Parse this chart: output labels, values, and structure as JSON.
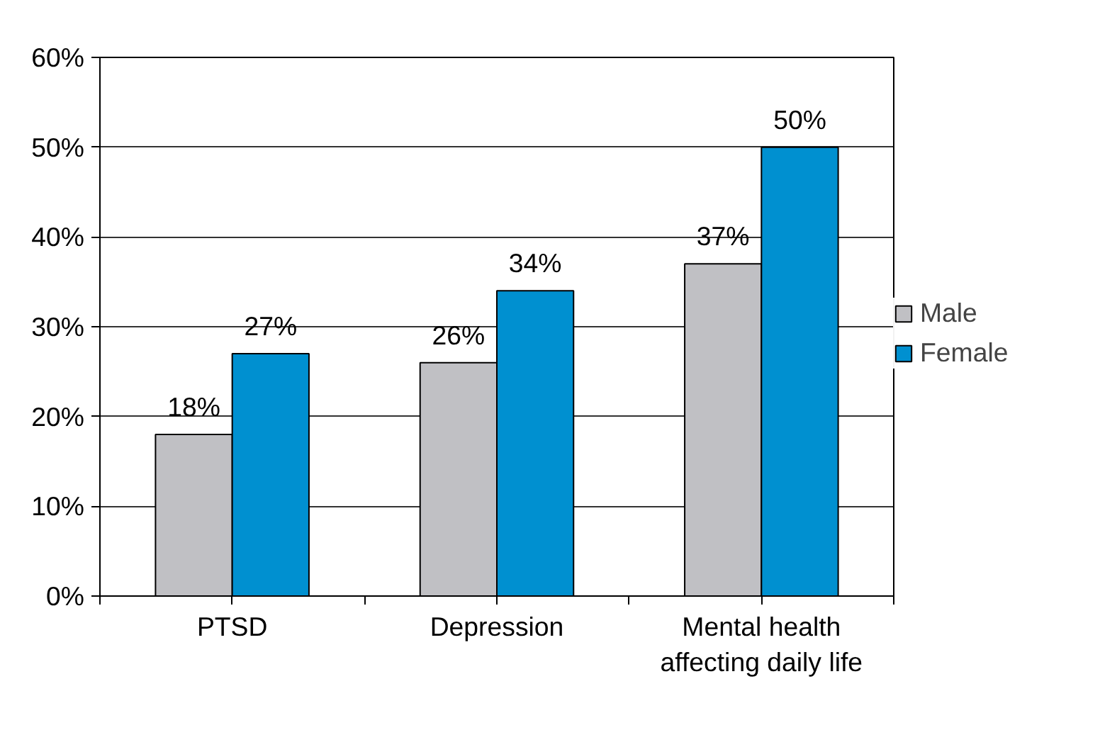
{
  "chart_data": {
    "type": "bar",
    "categories": [
      "PTSD",
      "Depression",
      "Mental health\naffecting daily life"
    ],
    "series": [
      {
        "name": "Male",
        "color": "#c0c0c4",
        "values": [
          18,
          26,
          37
        ],
        "value_labels": [
          "18%",
          "26%",
          "37%"
        ]
      },
      {
        "name": "Female",
        "color": "#0090d0",
        "values": [
          27,
          34,
          50
        ],
        "value_labels": [
          "27%",
          "34%",
          "50%"
        ]
      }
    ],
    "ylim": [
      0,
      60
    ],
    "yticks": [
      {
        "value": 0,
        "label": "0%"
      },
      {
        "value": 10,
        "label": "10%"
      },
      {
        "value": 20,
        "label": "20%"
      },
      {
        "value": 30,
        "label": "30%"
      },
      {
        "value": 40,
        "label": "40%"
      },
      {
        "value": 50,
        "label": "50%"
      },
      {
        "value": 60,
        "label": "60%"
      }
    ],
    "grid": "y",
    "legend": "right"
  }
}
